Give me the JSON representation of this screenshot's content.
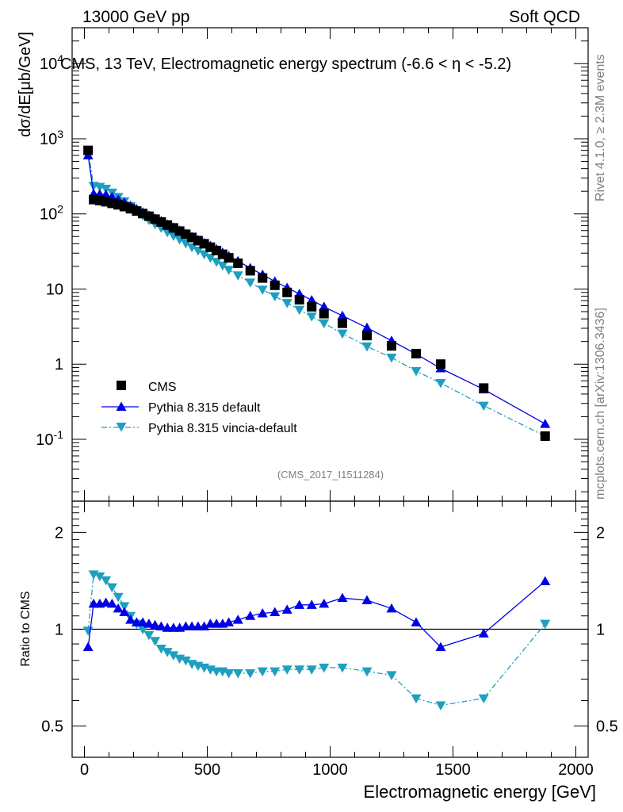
{
  "header": {
    "left": "13000 GeV pp",
    "right": "Soft QCD"
  },
  "side_text": {
    "rivet": "Rivet 4.1.0, ≥ 2.3M events",
    "mcplots": "mcplots.cern.ch [arXiv:1306.3436]"
  },
  "analysis_label": "(CMS_2017_I1511284)",
  "chart_data": [
    {
      "type": "line",
      "title": "CMS, 13 TeV, Electromagnetic energy spectrum (-6.6 < η < -5.2)",
      "ylabel": "dσ/dE[μb/GeV]",
      "xlabel": "",
      "yscale": "log",
      "xlim": [
        -50,
        2050
      ],
      "ylim": [
        0.015,
        30000
      ],
      "yticks": [
        0.1,
        1,
        10,
        100,
        1000,
        10000
      ],
      "ytick_labels": [
        "10^-1",
        "1",
        "10",
        "10^2",
        "10^3",
        "10^4"
      ],
      "legend": {
        "position": "bottom-left",
        "entries": [
          "CMS",
          "Pythia 8.315 default",
          "Pythia 8.315 vincia-default"
        ]
      },
      "x": [
        15,
        37.5,
        62.5,
        87.5,
        112.5,
        137.5,
        162.5,
        187.5,
        212.5,
        237.5,
        262.5,
        287.5,
        312.5,
        337.5,
        362.5,
        387.5,
        412.5,
        437.5,
        462.5,
        487.5,
        512.5,
        537.5,
        562.5,
        587.5,
        625,
        675,
        725,
        775,
        825,
        875,
        925,
        975,
        1050,
        1150,
        1250,
        1350,
        1450,
        1625,
        1875
      ],
      "series": [
        {
          "name": "CMS",
          "color": "#000000",
          "marker": "square",
          "values": [
            700,
            155,
            150,
            145,
            138,
            132,
            125,
            117,
            109,
            101,
            93,
            85,
            78,
            71,
            65,
            59,
            53.5,
            48.5,
            44,
            40,
            36,
            32.5,
            29,
            26,
            22,
            17.5,
            14,
            11.2,
            9,
            7.2,
            5.8,
            4.7,
            3.5,
            2.4,
            1.75,
            1.38,
            1.0,
            0.48,
            0.11
          ]
        },
        {
          "name": "Pythia 8.315 default",
          "color": "#0000e6",
          "marker": "triangle-up",
          "values": [
            600,
            185,
            183,
            180,
            168,
            155,
            142,
            128,
            116,
            105,
            95,
            87,
            80,
            72,
            66,
            60,
            54.5,
            49.5,
            45,
            41,
            37.5,
            34,
            30.5,
            27.5,
            23.5,
            19,
            15.5,
            12.6,
            10.4,
            8.6,
            7.1,
            5.8,
            4.4,
            3.05,
            2.05,
            1.36,
            0.88,
            0.46,
            0.16
          ]
        },
        {
          "name": "Pythia 8.315 vincia-default",
          "color": "#1f9fbf",
          "marker": "triangle-down",
          "values": [
            690,
            236,
            229,
            216,
            192,
            168,
            147,
            127,
            110,
            95,
            83,
            73,
            65,
            57,
            51,
            45.5,
            40.5,
            36,
            32.5,
            29,
            26,
            23,
            20.5,
            18,
            15.2,
            12.2,
            9.8,
            8.0,
            6.5,
            5.3,
            4.3,
            3.5,
            2.55,
            1.72,
            1.22,
            0.81,
            0.56,
            0.28,
            0.11
          ]
        }
      ]
    },
    {
      "type": "line",
      "title": "",
      "xlabel": "Electromagnetic energy [GeV]",
      "ylabel": "Ratio to CMS",
      "yscale": "log",
      "xlim": [
        -50,
        2050
      ],
      "ylim": [
        0.4,
        2.5
      ],
      "xticks": [
        0,
        500,
        1000,
        1500,
        2000
      ],
      "yticks": [
        0.5,
        1,
        2
      ],
      "reference_line": 1,
      "x": [
        15,
        37.5,
        62.5,
        87.5,
        112.5,
        137.5,
        162.5,
        187.5,
        212.5,
        237.5,
        262.5,
        287.5,
        312.5,
        337.5,
        362.5,
        387.5,
        412.5,
        437.5,
        462.5,
        487.5,
        512.5,
        537.5,
        562.5,
        587.5,
        625,
        675,
        725,
        775,
        825,
        875,
        925,
        975,
        1050,
        1150,
        1250,
        1350,
        1450,
        1625,
        1875
      ],
      "series": [
        {
          "name": "Pythia 8.315 default",
          "color": "#0000e6",
          "marker": "triangle-up",
          "values": [
            0.88,
            1.2,
            1.2,
            1.21,
            1.2,
            1.16,
            1.13,
            1.07,
            1.05,
            1.05,
            1.04,
            1.03,
            1.02,
            1.01,
            1.01,
            1.01,
            1.02,
            1.02,
            1.02,
            1.02,
            1.04,
            1.04,
            1.04,
            1.05,
            1.07,
            1.1,
            1.12,
            1.13,
            1.15,
            1.19,
            1.19,
            1.2,
            1.25,
            1.23,
            1.16,
            1.05,
            0.88,
            0.97,
            1.41
          ]
        },
        {
          "name": "Pythia 8.315 vincia-default",
          "color": "#1f9fbf",
          "marker": "triangle-down",
          "values": [
            0.99,
            1.48,
            1.46,
            1.42,
            1.35,
            1.26,
            1.18,
            1.1,
            1.04,
            1.0,
            0.96,
            0.92,
            0.87,
            0.85,
            0.83,
            0.81,
            0.8,
            0.78,
            0.77,
            0.76,
            0.75,
            0.74,
            0.74,
            0.73,
            0.73,
            0.73,
            0.74,
            0.74,
            0.75,
            0.75,
            0.75,
            0.76,
            0.76,
            0.74,
            0.72,
            0.61,
            0.58,
            0.61,
            1.04
          ]
        }
      ]
    }
  ]
}
